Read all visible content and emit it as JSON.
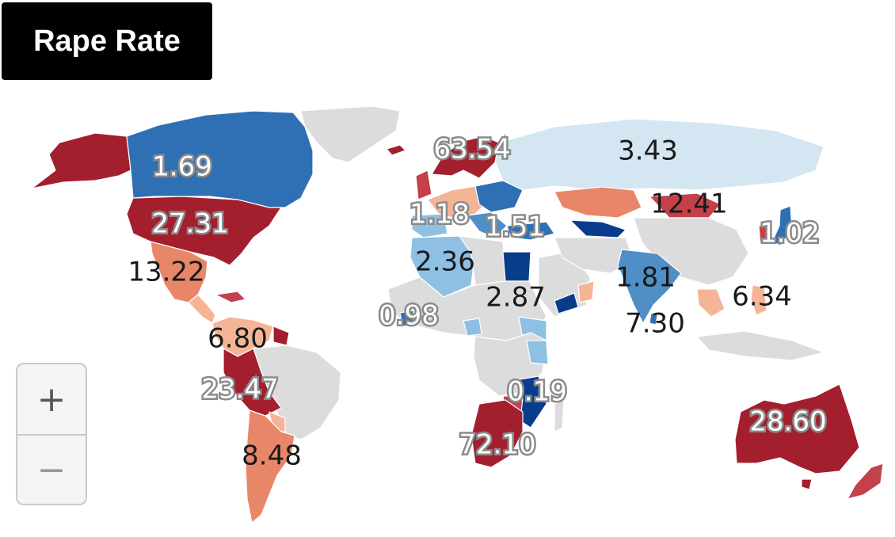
{
  "title": "Rape Rate",
  "zoom": {
    "in_label": "+",
    "out_label": "−"
  },
  "colors": {
    "no_data": "#dcdcdc",
    "dark_red": "#a31f2e",
    "red": "#c4404a",
    "salmon": "#e8866a",
    "light_salmon": "#f4b596",
    "dark_blue": "#0a3c8c",
    "blue": "#2f6fb3",
    "mid_blue": "#4f8ec7",
    "light_blue": "#8ec0e3",
    "pale_blue": "#d4e6f2"
  },
  "labels": [
    {
      "id": "canada",
      "text": "1.69",
      "style": "light"
    },
    {
      "id": "united-states",
      "text": "27.31",
      "style": "light"
    },
    {
      "id": "mexico",
      "text": "13.22",
      "style": "dark"
    },
    {
      "id": "caribbean",
      "text": "6.80",
      "style": "dark"
    },
    {
      "id": "peru",
      "text": "23.47",
      "style": "light"
    },
    {
      "id": "argentina",
      "text": "8.48",
      "style": "dark"
    },
    {
      "id": "sweden",
      "text": "63.54",
      "style": "light"
    },
    {
      "id": "russia",
      "text": "3.43",
      "style": "dark"
    },
    {
      "id": "kazakhstan",
      "text": "12.41",
      "style": "dark"
    },
    {
      "id": "spain",
      "text": "1.18",
      "style": "light"
    },
    {
      "id": "turkey",
      "text": "1.51",
      "style": "light"
    },
    {
      "id": "japan",
      "text": "1.02",
      "style": "light"
    },
    {
      "id": "algeria",
      "text": "2.36",
      "style": "dark"
    },
    {
      "id": "egypt",
      "text": "2.87",
      "style": "dark"
    },
    {
      "id": "india",
      "text": "1.81",
      "style": "dark"
    },
    {
      "id": "philippines",
      "text": "6.34",
      "style": "dark"
    },
    {
      "id": "sri-lanka",
      "text": "7.30",
      "style": "dark"
    },
    {
      "id": "ghana",
      "text": "0.98",
      "style": "light"
    },
    {
      "id": "mozambique",
      "text": "0.19",
      "style": "light"
    },
    {
      "id": "south-africa",
      "text": "72.10",
      "style": "light"
    },
    {
      "id": "australia",
      "text": "28.60",
      "style": "light"
    }
  ]
}
